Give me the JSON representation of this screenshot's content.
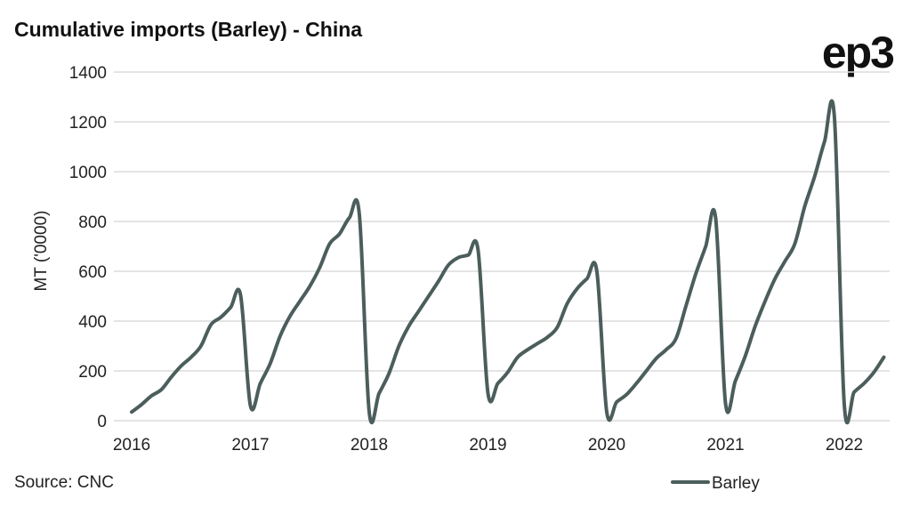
{
  "chart_data": {
    "type": "line",
    "title": "Cumulative imports (Barley) - China",
    "xlabel": "",
    "ylabel": "MT ('0000)",
    "ylim": [
      0,
      1400
    ],
    "yticks": [
      "0",
      "200",
      "400",
      "600",
      "800",
      "1000",
      "1200",
      "1400"
    ],
    "xticks": [
      "2016",
      "2017",
      "2018",
      "2019",
      "2020",
      "2021",
      "2022"
    ],
    "xlim": [
      2016,
      2022.4
    ],
    "grid": true,
    "legend_position": "bottom-right",
    "source": "Source: CNC",
    "logo": "ep3",
    "color": "#4b5e5c",
    "series": [
      {
        "name": "Barley",
        "start_year": 2016,
        "frequency": "monthly",
        "values": [
          35,
          65,
          100,
          125,
          175,
          220,
          255,
          300,
          385,
          415,
          455,
          505,
          60,
          150,
          230,
          340,
          420,
          480,
          540,
          615,
          710,
          750,
          815,
          830,
          35,
          110,
          190,
          300,
          380,
          440,
          500,
          560,
          625,
          655,
          665,
          685,
          110,
          150,
          195,
          255,
          285,
          310,
          335,
          375,
          470,
          530,
          570,
          600,
          35,
          75,
          105,
          150,
          200,
          250,
          285,
          330,
          460,
          590,
          700,
          815,
          70,
          160,
          260,
          380,
          480,
          570,
          640,
          710,
          860,
          980,
          1120,
          1220,
          65,
          115,
          150,
          195,
          255
        ]
      }
    ]
  }
}
